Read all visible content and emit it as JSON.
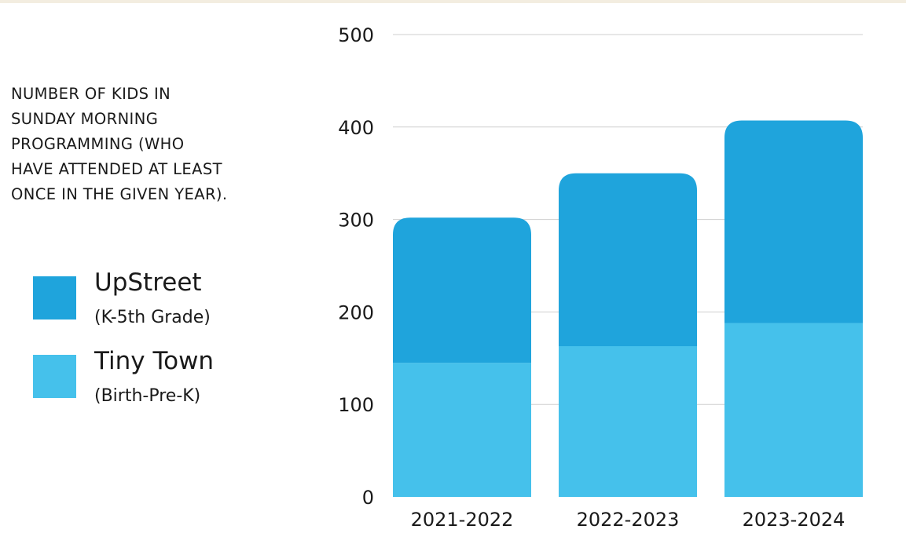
{
  "chart_data": {
    "type": "bar",
    "stacked": true,
    "title": "NUMBER OF KIDS IN\nSUNDAY MORNING\nPROGRAMMING (WHO\nHAVE ATTENDED AT LEAST\nONCE IN THE GIVEN YEAR).",
    "categories": [
      "2021-2022",
      "2022-2023",
      "2023-2024"
    ],
    "series": [
      {
        "name": "Tiny Town",
        "subtitle": "(Birth-Pre-K)",
        "color": "#45c1eb",
        "values": [
          145,
          163,
          188
        ]
      },
      {
        "name": "UpStreet",
        "subtitle": "(K-5th Grade)",
        "color": "#1fa4dc",
        "values": [
          157,
          187,
          219
        ]
      }
    ],
    "ylim": [
      0,
      500
    ],
    "yticks": [
      0,
      100,
      200,
      300,
      400,
      500
    ],
    "grid": true,
    "legend_position": "left"
  }
}
